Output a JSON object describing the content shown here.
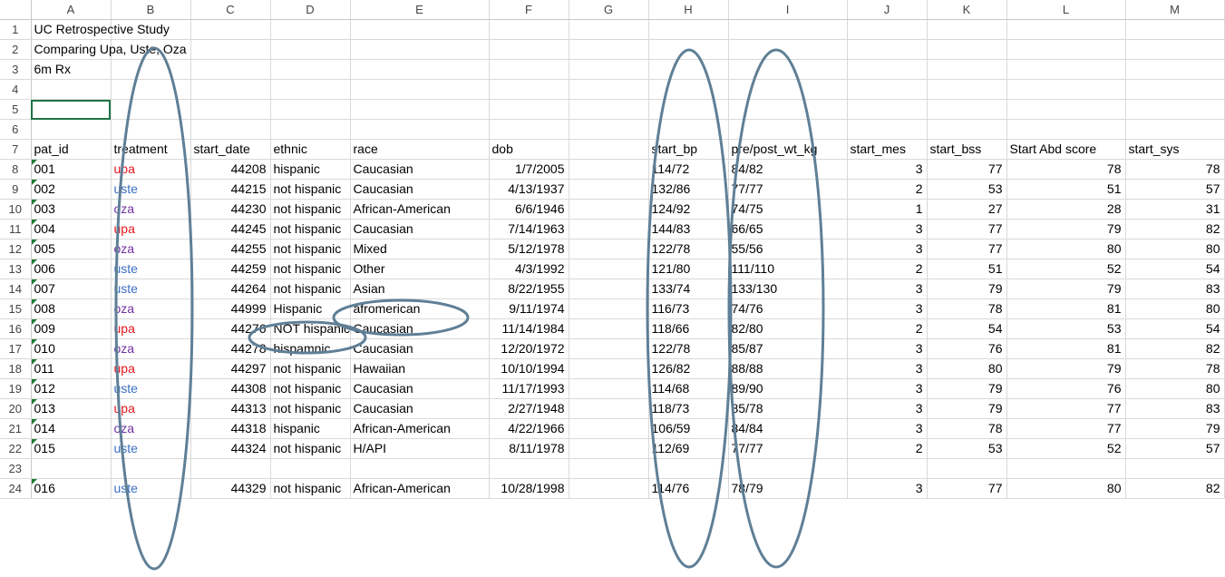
{
  "columns": [
    "A",
    "B",
    "C",
    "D",
    "E",
    "F",
    "G",
    "H",
    "I",
    "J",
    "K",
    "L",
    "M"
  ],
  "rows": [
    {
      "n": "1",
      "cells": [
        "UC Retrospective Study",
        "",
        "",
        "",
        "",
        "",
        "",
        "",
        "",
        "",
        "",
        "",
        ""
      ]
    },
    {
      "n": "2",
      "cells": [
        "Comparing Upa, Uste, Oza",
        "",
        "",
        "",
        "",
        "",
        "",
        "",
        "",
        "",
        "",
        "",
        ""
      ]
    },
    {
      "n": "3",
      "cells": [
        "6m Rx",
        "",
        "",
        "",
        "",
        "",
        "",
        "",
        "",
        "",
        "",
        "",
        ""
      ]
    },
    {
      "n": "4",
      "cells": [
        "",
        "",
        "",
        "",
        "",
        "",
        "",
        "",
        "",
        "",
        "",
        "",
        ""
      ]
    },
    {
      "n": "5",
      "cells": [
        "",
        "",
        "",
        "",
        "",
        "",
        "",
        "",
        "",
        "",
        "",
        "",
        ""
      ]
    },
    {
      "n": "6",
      "cells": [
        "",
        "",
        "",
        "",
        "",
        "",
        "",
        "",
        "",
        "",
        "",
        "",
        ""
      ]
    },
    {
      "n": "7",
      "cells": [
        "pat_id",
        "treatment",
        "start_date",
        "ethnic",
        "race",
        "dob",
        "",
        "start_bp",
        "pre/post_wt_kg",
        "start_mes",
        "start_bss",
        "Start Abd score",
        "start_sys"
      ]
    },
    {
      "n": "8",
      "cells": [
        "001",
        "upa",
        "44208",
        "hispanic",
        "Caucasian",
        "1/7/2005",
        "",
        "114/72",
        "84/82",
        "3",
        "77",
        "78",
        "78"
      ]
    },
    {
      "n": "9",
      "cells": [
        "002",
        "uste",
        "44215",
        "not hispanic",
        "Caucasian",
        "4/13/1937",
        "",
        "132/86",
        "77/77",
        "2",
        "53",
        "51",
        "57"
      ]
    },
    {
      "n": "10",
      "cells": [
        "003",
        "oza",
        "44230",
        "not hispanic",
        "African-American",
        "6/6/1946",
        "",
        "124/92",
        "74/75",
        "1",
        "27",
        "28",
        "31"
      ]
    },
    {
      "n": "11",
      "cells": [
        "004",
        "upa",
        "44245",
        "not hispanic",
        "Caucasian",
        "7/14/1963",
        "",
        "144/83",
        "66/65",
        "3",
        "77",
        "79",
        "82"
      ]
    },
    {
      "n": "12",
      "cells": [
        "005",
        "oza",
        "44255",
        "not hispanic",
        "Mixed",
        "5/12/1978",
        "",
        "122/78",
        "55/56",
        "3",
        "77",
        "80",
        "80"
      ]
    },
    {
      "n": "13",
      "cells": [
        "006",
        "uste",
        "44259",
        "not hispanic",
        "Other",
        "4/3/1992",
        "",
        "121/80",
        "111/110",
        "2",
        "51",
        "52",
        "54"
      ]
    },
    {
      "n": "14",
      "cells": [
        "007",
        "uste",
        "44264",
        "not hispanic",
        "Asian",
        "8/22/1955",
        "",
        "133/74",
        "133/130",
        "3",
        "79",
        "79",
        "83"
      ]
    },
    {
      "n": "15",
      "cells": [
        "008",
        "oza",
        "44999",
        "Hispanic",
        "afromerican",
        "9/11/1974",
        "",
        "116/73",
        "74/76",
        "3",
        "78",
        "81",
        "80"
      ]
    },
    {
      "n": "16",
      "cells": [
        "009",
        "upa",
        "44276",
        "NOT hispanic",
        "Caucasian",
        "11/14/1984",
        "",
        "118/66",
        "82/80",
        "2",
        "54",
        "53",
        "54"
      ]
    },
    {
      "n": "17",
      "cells": [
        "010",
        "oza",
        "44278",
        "hispamnic",
        "Caucasian",
        "12/20/1972",
        "",
        "122/78",
        "85/87",
        "3",
        "76",
        "81",
        "82"
      ]
    },
    {
      "n": "18",
      "cells": [
        "011",
        "upa",
        "44297",
        "not hispanic",
        "Hawaiian",
        "10/10/1994",
        "",
        "126/82",
        "88/88",
        "3",
        "80",
        "79",
        "78"
      ]
    },
    {
      "n": "19",
      "cells": [
        "012",
        "uste",
        "44308",
        "not hispanic",
        "Caucasian",
        "11/17/1993",
        "",
        "114/68",
        "89/90",
        "3",
        "79",
        "76",
        "80"
      ]
    },
    {
      "n": "20",
      "cells": [
        "013",
        "upa",
        "44313",
        "not hispanic",
        "Caucasian",
        "2/27/1948",
        "",
        "118/73",
        "85/78",
        "3",
        "79",
        "77",
        "83"
      ]
    },
    {
      "n": "21",
      "cells": [
        "014",
        "oza",
        "44318",
        "hispanic",
        "African-American",
        "4/22/1966",
        "",
        "106/59",
        "84/84",
        "3",
        "78",
        "77",
        "79"
      ]
    },
    {
      "n": "22",
      "cells": [
        "015",
        "uste",
        "44324",
        "not hispanic",
        "H/API",
        "8/11/1978",
        "",
        "112/69",
        "77/77",
        "2",
        "53",
        "52",
        "57"
      ]
    },
    {
      "n": "23",
      "cells": [
        "",
        "",
        "",
        "",
        "",
        "",
        "",
        "",
        "",
        "",
        "",
        "",
        ""
      ]
    },
    {
      "n": "24",
      "cells": [
        "016",
        "uste",
        "44329",
        "not hispanic",
        "African-American",
        "10/28/1998",
        "",
        "114/76",
        "78/79",
        "3",
        "77",
        "80",
        "82"
      ]
    }
  ],
  "colors": {
    "upa": "#e8141c",
    "uste": "#3a6fc4",
    "oza": "#7030a0",
    "oval": "#5f7f96",
    "grid": "#d9d9d9",
    "selection": "#217346"
  }
}
